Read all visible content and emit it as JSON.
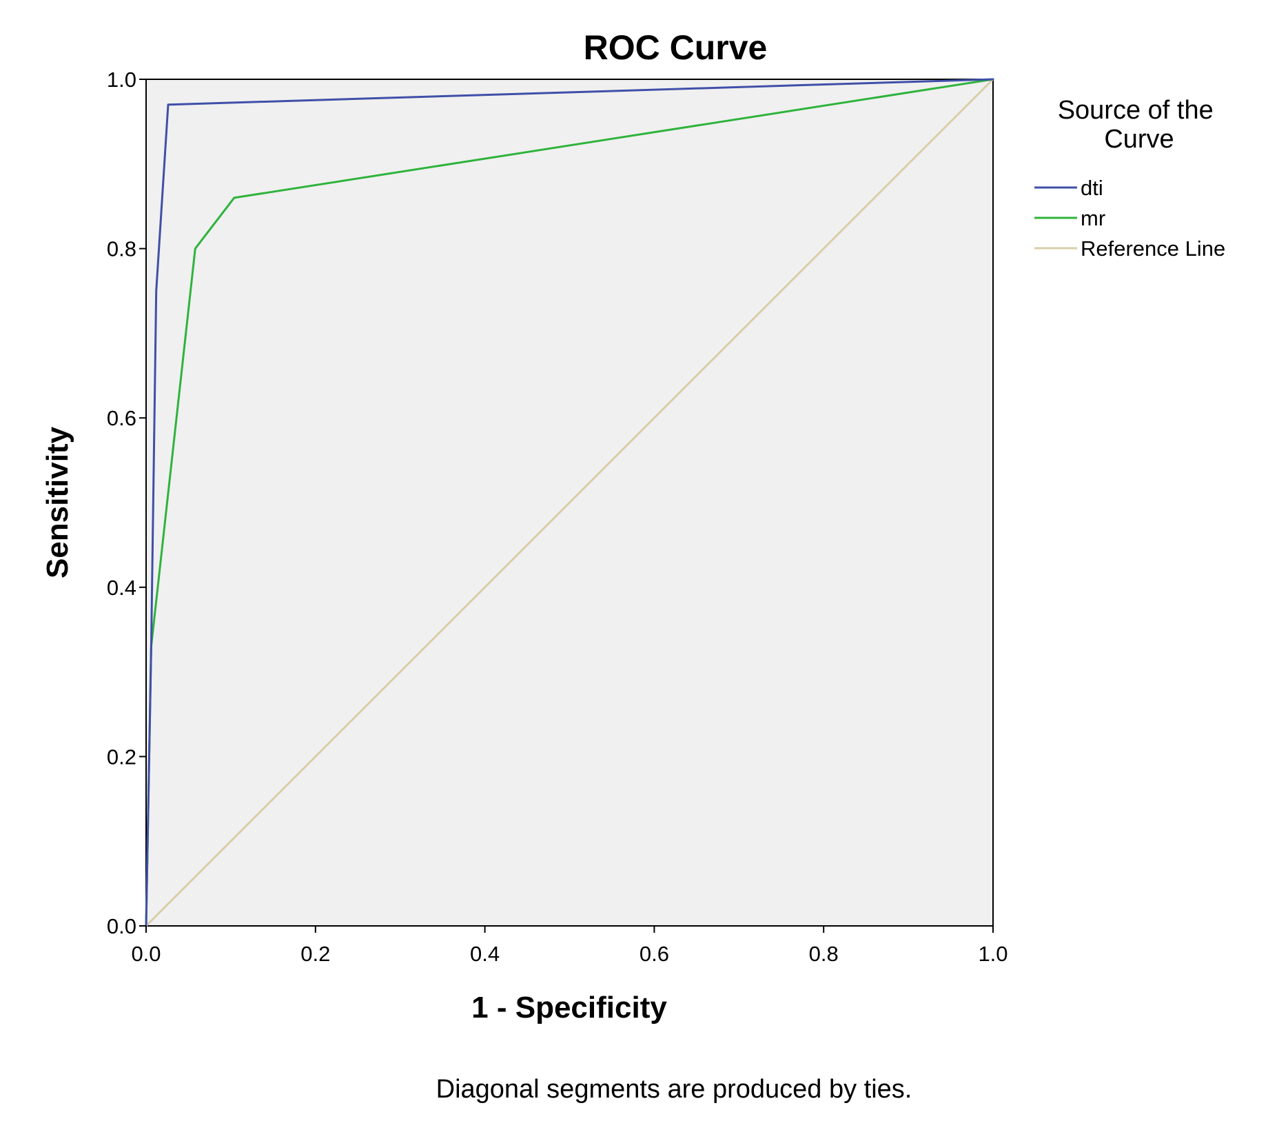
{
  "chart_data": {
    "type": "line",
    "title": "ROC Curve",
    "xlabel": "1 - Specificity",
    "ylabel": "Sensitivity",
    "xlim": [
      0.0,
      1.0
    ],
    "ylim": [
      0.0,
      1.0
    ],
    "x_ticks": [
      "0.0",
      "0.2",
      "0.4",
      "0.6",
      "0.8",
      "1.0"
    ],
    "y_ticks": [
      "0.0",
      "0.2",
      "0.4",
      "0.6",
      "0.8",
      "1.0"
    ],
    "grid": false,
    "legend_title": "Source of the Curve",
    "legend_position": "right",
    "series": [
      {
        "name": "dti",
        "color": "#3f4fa8",
        "points": [
          [
            0.0,
            0.0
          ],
          [
            0.006,
            0.33
          ],
          [
            0.012,
            0.75
          ],
          [
            0.026,
            0.97
          ],
          [
            1.0,
            1.0
          ]
        ]
      },
      {
        "name": "mr",
        "color": "#2fb33c",
        "points": [
          [
            0.0,
            0.0
          ],
          [
            0.006,
            0.33
          ],
          [
            0.058,
            0.8
          ],
          [
            0.104,
            0.86
          ],
          [
            1.0,
            1.0
          ]
        ]
      },
      {
        "name": "Reference Line",
        "color": "#d8ceaa",
        "points": [
          [
            0.0,
            0.0
          ],
          [
            1.0,
            1.0
          ]
        ]
      }
    ],
    "footnote": "Diagonal segments are produced by ties."
  }
}
